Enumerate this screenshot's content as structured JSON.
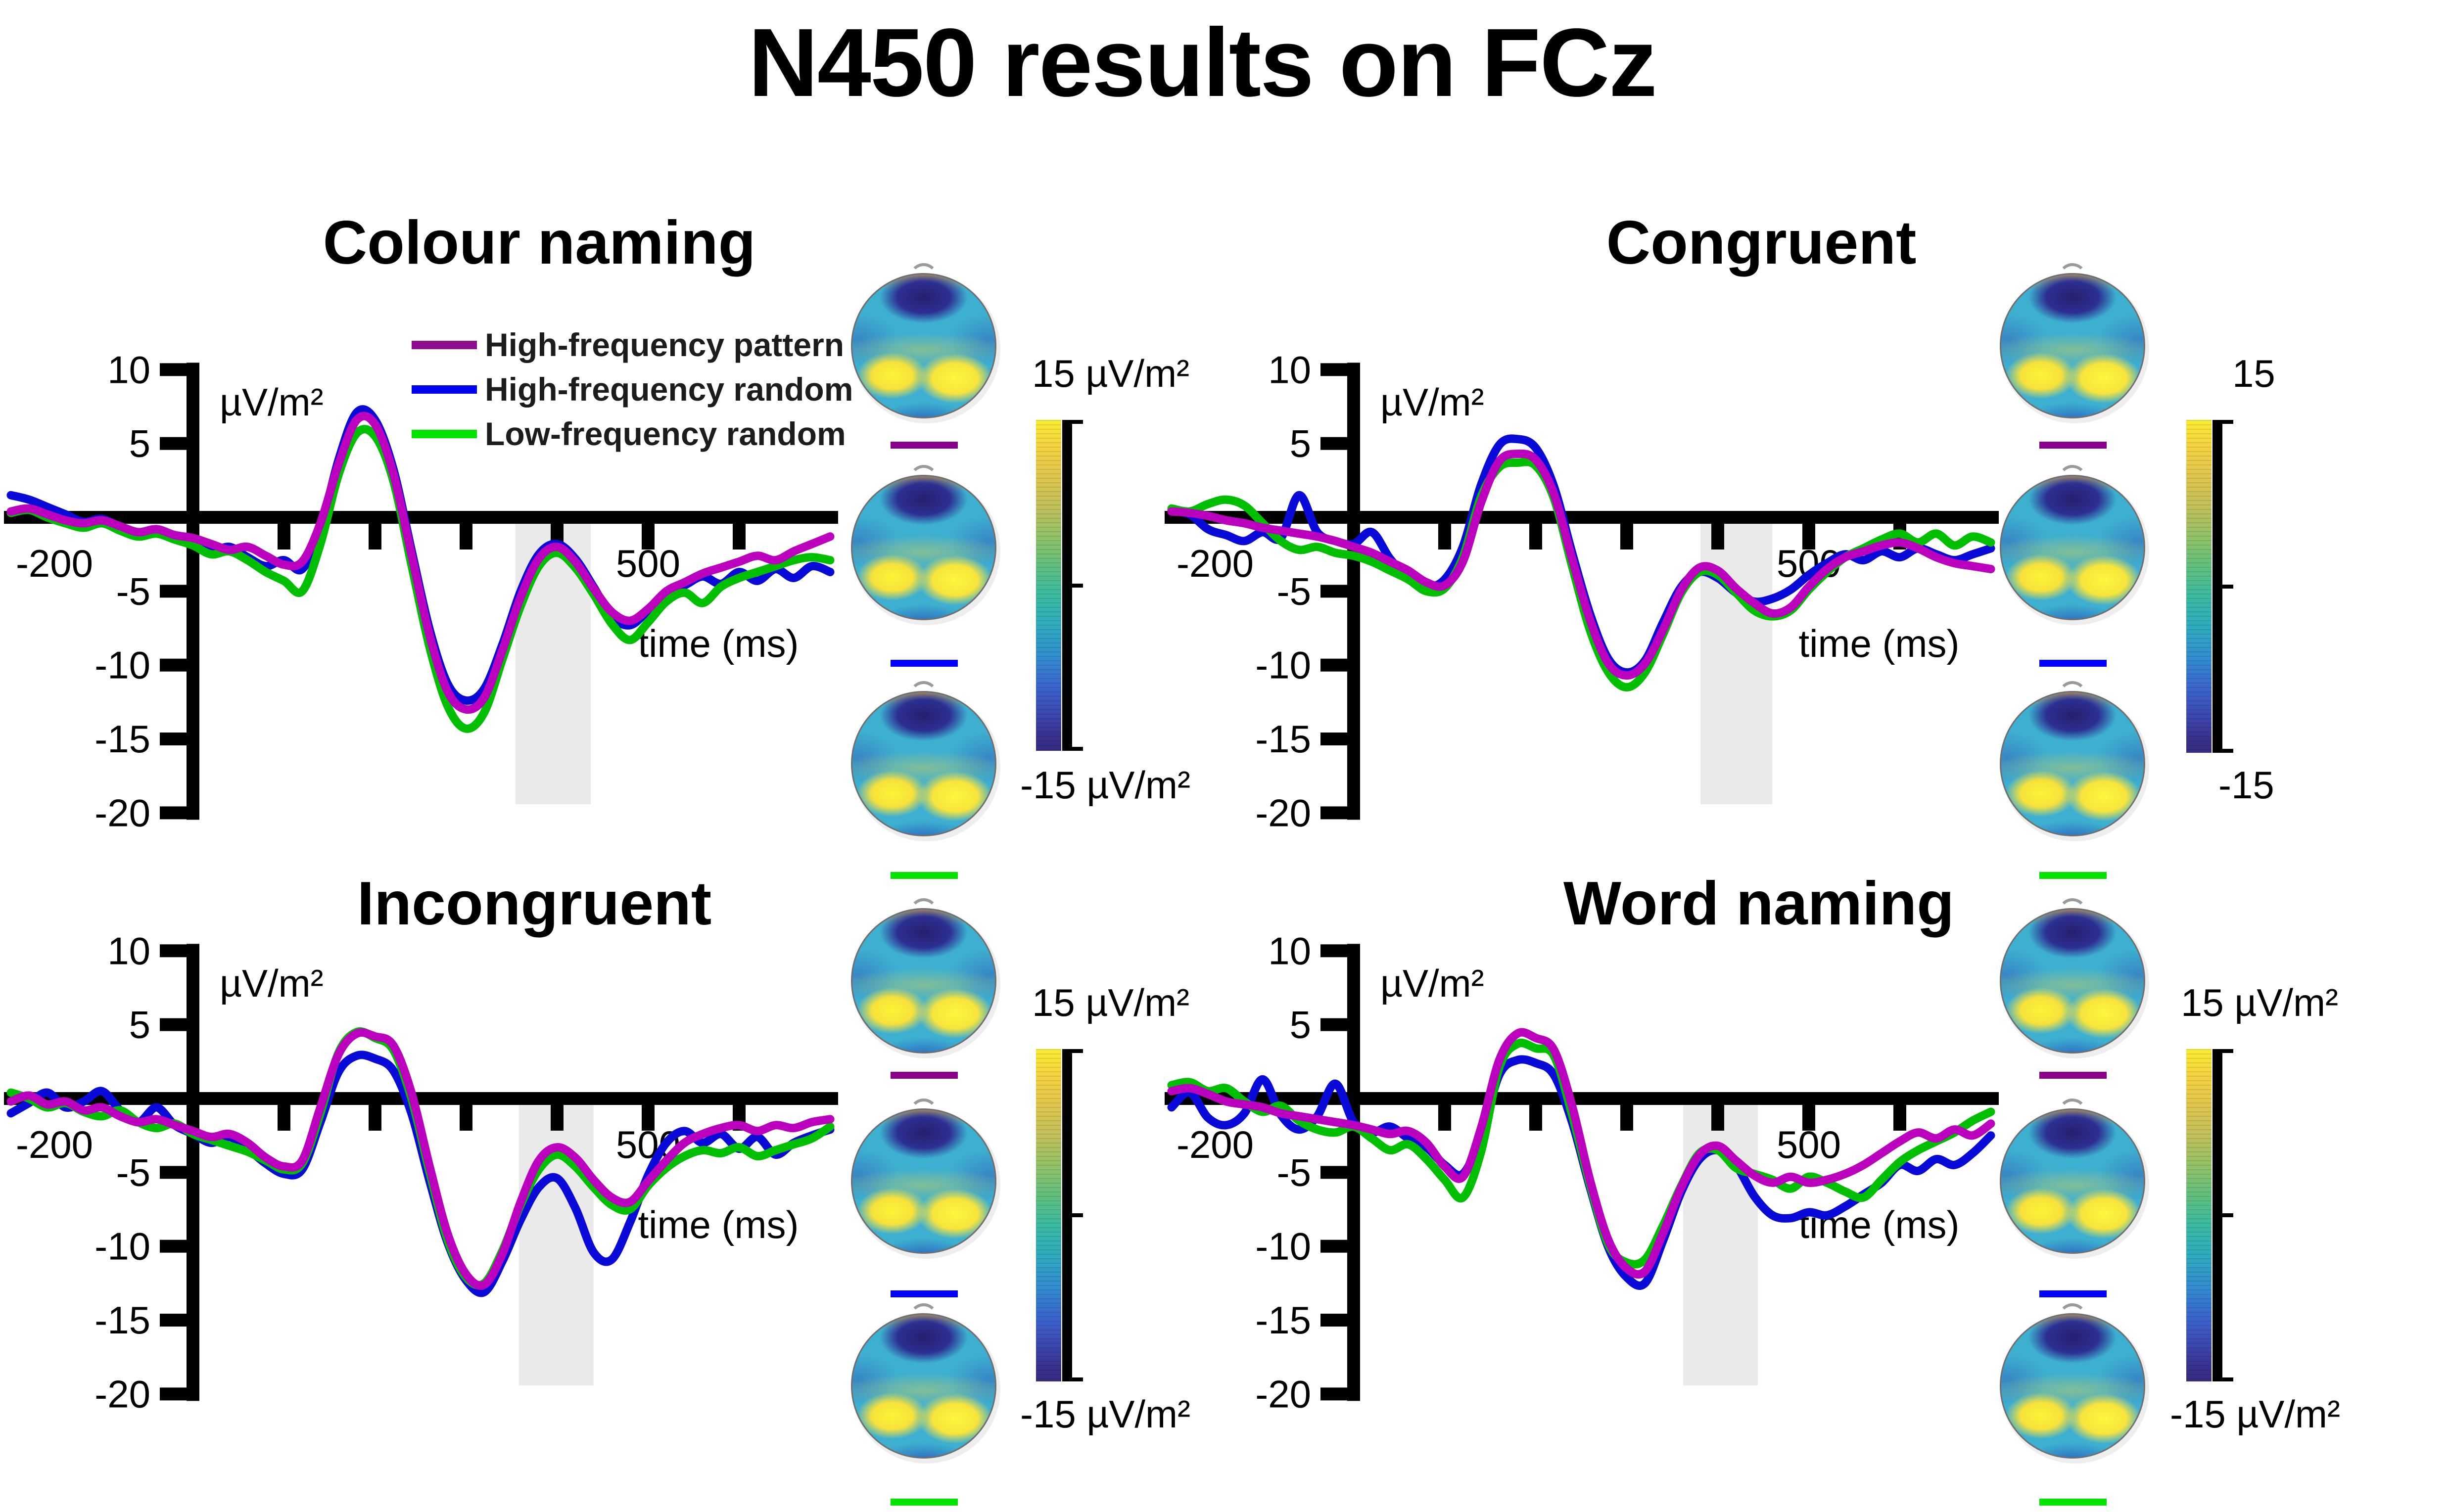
{
  "title": "N450 results on FCz",
  "style": {
    "band_color": "#eaeaea",
    "axis_color": "#000000",
    "background": "#ffffff"
  },
  "legend": {
    "items": [
      {
        "label": "High-frequency pattern",
        "swatch_color": "#8e0c8e"
      },
      {
        "label": "High-frequency random",
        "swatch_color": "#0000f0"
      },
      {
        "label": "Low-frequency random",
        "swatch_color": "#00e400"
      }
    ]
  },
  "topography": {
    "row_conditions": [
      "High-frequency pattern",
      "High-frequency random",
      "Low-frequency random"
    ],
    "row_line_colors": [
      "#8b008b",
      "#0000ff",
      "#00e400"
    ]
  },
  "colorbars": [
    {
      "panel": "Colour naming",
      "top_label": "15 µV/m²",
      "bottom_label": "-15 µV/m²"
    },
    {
      "panel": "Congruent",
      "top_label": "15",
      "bottom_label": "-15"
    },
    {
      "panel": "Incongruent",
      "top_label": "15 µV/m²",
      "bottom_label": "-15 µV/m²"
    },
    {
      "panel": "Word naming",
      "top_label": "15 µV/m²",
      "bottom_label": "-15 µV/m²"
    }
  ],
  "time_axis_ms": [
    -200,
    -180,
    -160,
    -140,
    -120,
    -100,
    -80,
    -60,
    -40,
    -20,
    0,
    20,
    40,
    60,
    80,
    100,
    120,
    140,
    160,
    180,
    200,
    220,
    240,
    260,
    280,
    300,
    320,
    340,
    360,
    380,
    400,
    420,
    440,
    460,
    480,
    500,
    520,
    540,
    560,
    580,
    600,
    620,
    640,
    660,
    680,
    700
  ],
  "chart_data": [
    {
      "title": "Colour naming",
      "type": "line",
      "xlabel": "time (ms)",
      "ylabel": "µV/m²",
      "xlim": [
        -200,
        700
      ],
      "ylim": [
        -20,
        10
      ],
      "yticks": [
        10,
        5,
        -5,
        -10,
        -15,
        -20
      ],
      "xticks": [
        100,
        200,
        300,
        400,
        500,
        600
      ],
      "xtick_labels": [
        {
          "t": -200,
          "label": "-200"
        },
        {
          "t": 500,
          "label": "500"
        }
      ],
      "sig_band_ms": [
        354,
        437
      ],
      "series": [
        {
          "name": "High-frequency pattern",
          "color": "#bb00be",
          "values": [
            0.4,
            0.6,
            0.2,
            -0.2,
            -0.4,
            -0.2,
            -0.6,
            -1.0,
            -0.8,
            -1.2,
            -1.4,
            -1.8,
            -2.2,
            -2.0,
            -2.6,
            -3.2,
            -3.0,
            -0.4,
            3.6,
            6.6,
            6.3,
            3.0,
            -2.5,
            -8.0,
            -11.8,
            -13.0,
            -12.2,
            -9.0,
            -5.4,
            -2.8,
            -2.0,
            -3.0,
            -4.8,
            -6.4,
            -7.0,
            -6.2,
            -5.0,
            -4.4,
            -3.8,
            -3.4,
            -3.0,
            -2.6,
            -2.9,
            -2.3,
            -1.8,
            -1.3
          ]
        },
        {
          "name": "High-frequency random",
          "color": "#0a0ad8",
          "values": [
            1.5,
            1.2,
            0.7,
            0.2,
            -0.3,
            -0.1,
            -0.7,
            -1.1,
            -0.9,
            -1.3,
            -1.7,
            -2.3,
            -2.0,
            -2.7,
            -3.3,
            -2.9,
            -3.5,
            -0.8,
            3.9,
            7.1,
            6.6,
            3.3,
            -2.2,
            -7.6,
            -11.3,
            -12.4,
            -11.6,
            -8.6,
            -5.0,
            -2.5,
            -1.8,
            -2.8,
            -4.7,
            -6.7,
            -7.3,
            -6.3,
            -5.1,
            -4.6,
            -4.0,
            -4.5,
            -3.7,
            -4.3,
            -3.5,
            -4.1,
            -3.3,
            -3.7
          ]
        },
        {
          "name": "Low-frequency random",
          "color": "#00bf00",
          "values": [
            0.3,
            0.5,
            0.0,
            -0.4,
            -0.7,
            -0.4,
            -0.9,
            -1.3,
            -1.1,
            -1.5,
            -1.9,
            -2.5,
            -2.3,
            -2.9,
            -3.7,
            -4.3,
            -5.0,
            -1.8,
            2.9,
            5.7,
            5.5,
            2.5,
            -3.2,
            -8.8,
            -12.8,
            -14.3,
            -13.2,
            -9.6,
            -6.0,
            -3.3,
            -2.4,
            -3.4,
            -5.2,
            -7.2,
            -8.3,
            -7.1,
            -5.7,
            -5.1,
            -5.8,
            -4.7,
            -4.1,
            -3.7,
            -3.3,
            -2.9,
            -2.7,
            -2.9
          ]
        }
      ]
    },
    {
      "title": "Congruent",
      "type": "line",
      "xlabel": "time (ms)",
      "ylabel": "µV/m²",
      "xlim": [
        -200,
        700
      ],
      "ylim": [
        -20,
        10
      ],
      "yticks": [
        10,
        5,
        -5,
        -10,
        -15,
        -20
      ],
      "xticks": [
        100,
        200,
        300,
        400,
        500,
        600
      ],
      "xtick_labels": [
        {
          "t": -200,
          "label": "-200"
        },
        {
          "t": 500,
          "label": "500"
        }
      ],
      "sig_band_ms": [
        381,
        460
      ],
      "series": [
        {
          "name": "High-frequency pattern",
          "color": "#bb00be",
          "values": [
            0.4,
            0.3,
            0.1,
            -0.2,
            -0.4,
            -0.7,
            -0.9,
            -1.1,
            -1.3,
            -1.6,
            -2.0,
            -2.4,
            -3.0,
            -3.6,
            -4.4,
            -4.6,
            -3.0,
            1.0,
            3.8,
            4.3,
            3.9,
            1.6,
            -2.8,
            -7.0,
            -9.9,
            -10.7,
            -9.9,
            -7.6,
            -4.9,
            -3.4,
            -3.6,
            -4.8,
            -5.8,
            -6.5,
            -6.1,
            -4.7,
            -3.5,
            -2.7,
            -2.3,
            -1.9,
            -1.7,
            -2.1,
            -2.7,
            -3.1,
            -3.3,
            -3.5
          ]
        },
        {
          "name": "High-frequency random",
          "color": "#0a0ad8",
          "values": [
            0.5,
            0.2,
            -0.8,
            -1.2,
            -1.6,
            -1.0,
            -1.4,
            1.5,
            -1.0,
            -1.6,
            -1.8,
            -1.0,
            -2.8,
            -4.1,
            -4.7,
            -4.2,
            -2.0,
            2.2,
            4.9,
            5.3,
            4.7,
            2.1,
            -2.4,
            -6.6,
            -9.6,
            -10.5,
            -9.7,
            -7.1,
            -4.7,
            -3.7,
            -4.1,
            -5.1,
            -5.7,
            -5.5,
            -4.9,
            -3.9,
            -3.1,
            -2.5,
            -2.9,
            -2.3,
            -2.7,
            -2.1,
            -2.5,
            -2.9,
            -2.5,
            -2.1
          ]
        },
        {
          "name": "Low-frequency random",
          "color": "#00bf00",
          "values": [
            0.6,
            0.4,
            0.9,
            1.2,
            0.8,
            -0.4,
            -1.6,
            -2.2,
            -2.0,
            -2.4,
            -2.6,
            -3.0,
            -3.6,
            -4.2,
            -5.0,
            -4.8,
            -2.7,
            1.4,
            3.4,
            3.7,
            3.5,
            1.3,
            -3.3,
            -7.7,
            -10.5,
            -11.5,
            -10.5,
            -7.9,
            -5.1,
            -3.7,
            -3.9,
            -5.1,
            -6.3,
            -6.7,
            -6.3,
            -4.9,
            -3.7,
            -2.7,
            -2.1,
            -1.5,
            -1.1,
            -1.7,
            -1.1,
            -1.9,
            -1.3,
            -1.7
          ]
        }
      ]
    },
    {
      "title": "Incongruent",
      "type": "line",
      "xlabel": "time (ms)",
      "ylabel": "µV/m²",
      "xlim": [
        -200,
        700
      ],
      "ylim": [
        -20,
        10
      ],
      "yticks": [
        10,
        5,
        -5,
        -10,
        -15,
        -20
      ],
      "xticks": [
        100,
        200,
        300,
        400,
        500,
        600
      ],
      "xtick_labels": [
        {
          "t": -200,
          "label": "-200"
        },
        {
          "t": 500,
          "label": "500"
        }
      ],
      "sig_band_ms": [
        358,
        440
      ],
      "series": [
        {
          "name": "High-frequency pattern",
          "color": "#bb00be",
          "values": [
            -0.2,
            0.2,
            -0.4,
            -0.2,
            -0.8,
            -0.6,
            -1.2,
            -1.6,
            -1.4,
            -1.8,
            -2.2,
            -2.6,
            -2.4,
            -3.0,
            -4.0,
            -4.6,
            -4.2,
            -0.6,
            3.0,
            4.4,
            4.2,
            3.6,
            0.4,
            -4.6,
            -9.2,
            -11.9,
            -12.6,
            -10.5,
            -7.0,
            -4.2,
            -3.3,
            -4.0,
            -5.5,
            -6.7,
            -7.0,
            -5.6,
            -4.2,
            -3.0,
            -2.4,
            -2.0,
            -1.8,
            -2.2,
            -1.8,
            -2.0,
            -1.6,
            -1.4
          ]
        },
        {
          "name": "High-frequency random",
          "color": "#0a0ad8",
          "values": [
            -1.0,
            -0.3,
            0.4,
            -0.6,
            -0.2,
            0.5,
            -0.8,
            -1.6,
            -0.6,
            -1.8,
            -2.4,
            -3.0,
            -2.6,
            -3.4,
            -4.4,
            -5.1,
            -4.8,
            -1.6,
            1.8,
            2.9,
            2.7,
            1.9,
            -1.0,
            -5.6,
            -9.8,
            -12.3,
            -13.1,
            -11.0,
            -8.2,
            -6.0,
            -5.4,
            -7.4,
            -10.4,
            -10.9,
            -8.4,
            -5.2,
            -3.0,
            -2.2,
            -3.0,
            -2.4,
            -3.4,
            -2.6,
            -3.8,
            -3.0,
            -2.5,
            -2.1
          ]
        },
        {
          "name": "Low-frequency random",
          "color": "#00bf00",
          "values": [
            0.4,
            0.0,
            -0.6,
            -0.3,
            -0.9,
            -1.2,
            -0.8,
            -1.6,
            -2.0,
            -1.7,
            -2.4,
            -2.8,
            -3.2,
            -3.6,
            -4.2,
            -4.8,
            -4.4,
            -1.0,
            3.1,
            4.5,
            4.1,
            3.3,
            0.0,
            -5.0,
            -9.6,
            -12.1,
            -12.5,
            -10.3,
            -7.2,
            -4.8,
            -3.8,
            -4.6,
            -6.0,
            -7.2,
            -7.5,
            -5.9,
            -4.7,
            -3.9,
            -3.5,
            -3.7,
            -3.3,
            -3.9,
            -3.5,
            -3.1,
            -2.7,
            -1.9
          ]
        }
      ]
    },
    {
      "title": "Word naming",
      "type": "line",
      "xlabel": "time (ms)",
      "ylabel": "µV/m²",
      "xlim": [
        -200,
        700
      ],
      "ylim": [
        -20,
        10
      ],
      "yticks": [
        10,
        5,
        -5,
        -10,
        -15,
        -20
      ],
      "xticks": [
        100,
        200,
        300,
        400,
        500,
        600
      ],
      "xtick_labels": [
        {
          "t": -200,
          "label": "-200"
        },
        {
          "t": 500,
          "label": "500"
        }
      ],
      "sig_band_ms": [
        362,
        444
      ],
      "series": [
        {
          "name": "High-frequency pattern",
          "color": "#bb00be",
          "values": [
            0.5,
            0.7,
            0.3,
            -0.2,
            -0.4,
            -0.6,
            -1.0,
            -1.2,
            -1.4,
            -1.6,
            -1.8,
            -2.1,
            -2.4,
            -2.2,
            -3.0,
            -4.6,
            -5.3,
            -2.0,
            2.6,
            4.4,
            4.1,
            3.3,
            -0.5,
            -5.6,
            -9.6,
            -11.5,
            -11.7,
            -9.1,
            -6.0,
            -3.8,
            -3.2,
            -4.2,
            -5.2,
            -5.7,
            -5.3,
            -5.7,
            -5.5,
            -5.1,
            -4.5,
            -3.7,
            -2.9,
            -2.3,
            -2.7,
            -2.1,
            -2.5,
            -1.7
          ]
        },
        {
          "name": "High-frequency random",
          "color": "#0a0ad8",
          "values": [
            -0.6,
            0.4,
            -1.3,
            -1.8,
            -1.0,
            1.3,
            -1.1,
            -2.1,
            -1.2,
            1.0,
            -1.6,
            -2.3,
            -1.9,
            -2.7,
            -3.3,
            -4.5,
            -5.1,
            -2.5,
            1.6,
            2.6,
            2.4,
            1.6,
            -1.6,
            -6.1,
            -10.1,
            -12.1,
            -12.5,
            -9.6,
            -6.3,
            -4.1,
            -3.5,
            -4.5,
            -6.6,
            -7.9,
            -8.1,
            -7.7,
            -7.9,
            -7.3,
            -6.5,
            -5.7,
            -4.5,
            -4.9,
            -4.1,
            -4.5,
            -3.7,
            -2.5
          ]
        },
        {
          "name": "Low-frequency random",
          "color": "#00bf00",
          "values": [
            0.9,
            1.1,
            0.5,
            0.7,
            -0.2,
            -0.9,
            -0.5,
            -1.5,
            -2.1,
            -2.3,
            -1.9,
            -2.7,
            -3.5,
            -3.1,
            -4.1,
            -5.5,
            -6.7,
            -3.6,
            2.1,
            3.7,
            3.4,
            2.9,
            -1.1,
            -5.9,
            -9.9,
            -11.1,
            -10.9,
            -8.6,
            -5.9,
            -3.7,
            -3.5,
            -4.7,
            -5.1,
            -5.5,
            -6.1,
            -5.3,
            -5.7,
            -6.3,
            -6.7,
            -5.5,
            -4.3,
            -3.5,
            -2.9,
            -2.3,
            -1.5,
            -0.9
          ]
        }
      ]
    }
  ]
}
